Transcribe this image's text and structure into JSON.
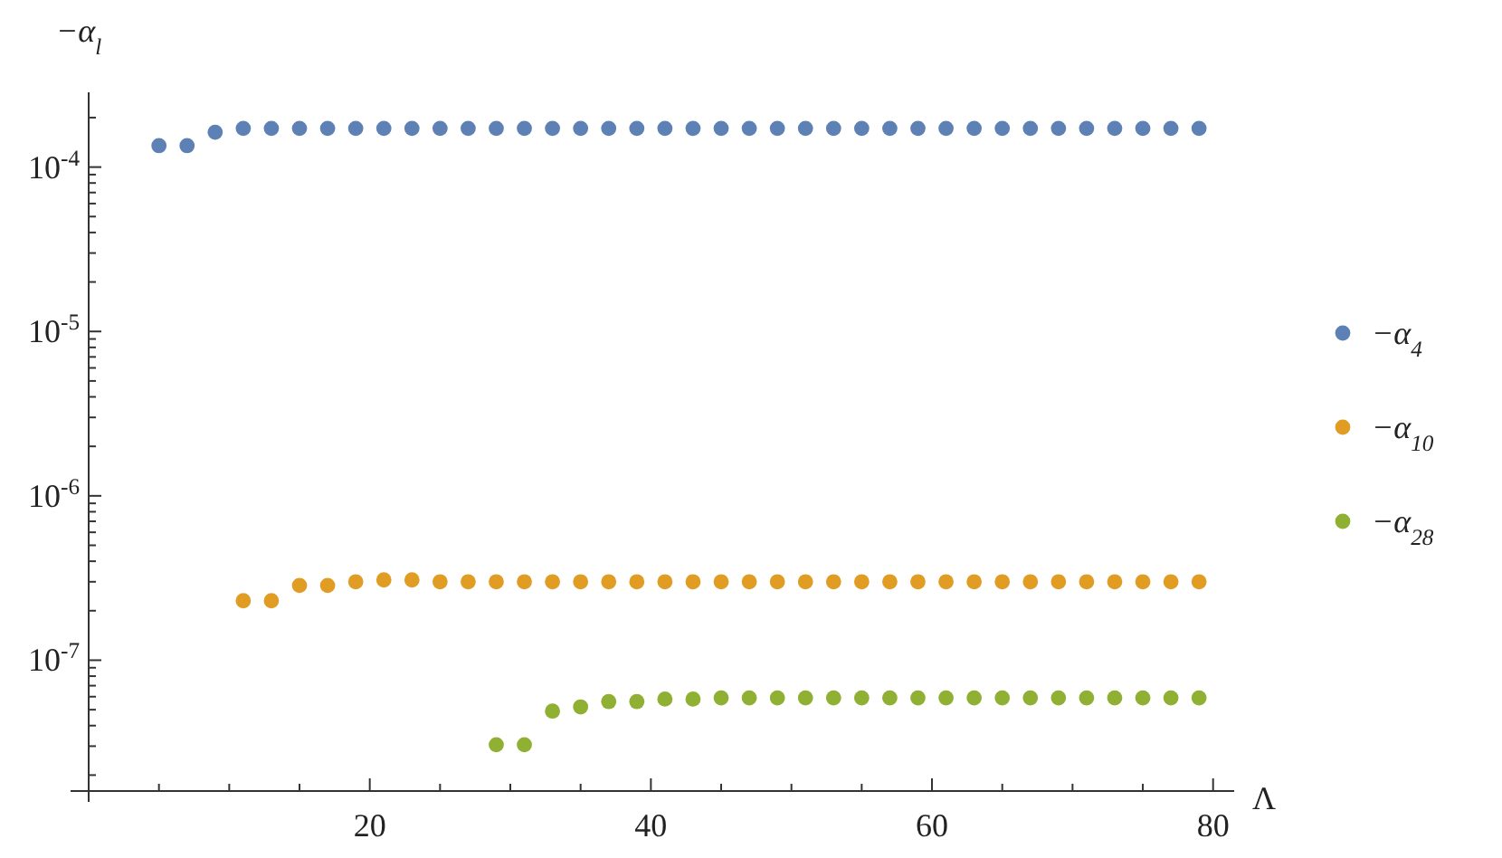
{
  "chart_data": {
    "type": "scatter",
    "xlabel": "Λ",
    "ylabel": "−α$_{l}$",
    "log": "y",
    "marker": "circle",
    "legend": "right",
    "xlim": [
      0,
      81.5
    ],
    "ylim": [
      1.6e-08,
      0.000285
    ],
    "xticks": [
      {
        "value": 5,
        "label": null
      },
      {
        "value": 10,
        "label": null
      },
      {
        "value": 15,
        "label": null
      },
      20,
      {
        "value": 25,
        "label": null
      },
      {
        "value": 30,
        "label": null
      },
      {
        "value": 35,
        "label": null
      },
      40,
      {
        "value": 45,
        "label": null
      },
      {
        "value": 50,
        "label": null
      },
      {
        "value": 55,
        "label": null
      },
      60,
      {
        "value": 65,
        "label": null
      },
      {
        "value": 70,
        "label": null
      },
      {
        "value": 75,
        "label": null
      },
      80
    ],
    "yticks": [
      {
        "value": 2e-08,
        "label": null
      },
      {
        "value": 3e-08,
        "label": null
      },
      {
        "value": 4e-08,
        "label": null
      },
      {
        "value": 5e-08,
        "label": null
      },
      {
        "value": 6e-08,
        "label": null
      },
      {
        "value": 7e-08,
        "label": null
      },
      {
        "value": 8e-08,
        "label": null
      },
      {
        "value": 9e-08,
        "label": null
      },
      {
        "value": 1e-07,
        "label": "10$^{-7}$"
      },
      {
        "value": 2e-07,
        "label": null
      },
      {
        "value": 3e-07,
        "label": null
      },
      {
        "value": 4e-07,
        "label": null
      },
      {
        "value": 5e-07,
        "label": null
      },
      {
        "value": 6e-07,
        "label": null
      },
      {
        "value": 7e-07,
        "label": null
      },
      {
        "value": 8e-07,
        "label": null
      },
      {
        "value": 9e-07,
        "label": null
      },
      {
        "value": 1e-06,
        "label": "10$^{-6}$"
      },
      {
        "value": 2e-06,
        "label": null
      },
      {
        "value": 3e-06,
        "label": null
      },
      {
        "value": 4e-06,
        "label": null
      },
      {
        "value": 5e-06,
        "label": null
      },
      {
        "value": 6e-06,
        "label": null
      },
      {
        "value": 7e-06,
        "label": null
      },
      {
        "value": 8e-06,
        "label": null
      },
      {
        "value": 9e-06,
        "label": null
      },
      {
        "value": 1e-05,
        "label": "10$^{-5}$"
      },
      {
        "value": 2e-05,
        "label": null
      },
      {
        "value": 3e-05,
        "label": null
      },
      {
        "value": 4e-05,
        "label": null
      },
      {
        "value": 5e-05,
        "label": null
      },
      {
        "value": 6e-05,
        "label": null
      },
      {
        "value": 7e-05,
        "label": null
      },
      {
        "value": 8e-05,
        "label": null
      },
      {
        "value": 9e-05,
        "label": null
      },
      {
        "value": 0.0001,
        "label": "10$^{-4}$"
      },
      {
        "value": 0.0002,
        "label": null
      }
    ],
    "series": [
      {
        "name": "−α$_{4}$",
        "color": "#5e81b5",
        "x": [
          5,
          7,
          9,
          11,
          13,
          15,
          17,
          19,
          21,
          23,
          25,
          27,
          29,
          31,
          33,
          35,
          37,
          39,
          41,
          43,
          45,
          47,
          49,
          51,
          53,
          55,
          57,
          59,
          61,
          63,
          65,
          67,
          69,
          71,
          73,
          75,
          77,
          79
        ],
        "values": [
          0.000135,
          0.000135,
          0.000163,
          0.000172,
          0.000172,
          0.000172,
          0.000172,
          0.000172,
          0.000172,
          0.000172,
          0.000172,
          0.000172,
          0.000172,
          0.000172,
          0.000172,
          0.000172,
          0.000172,
          0.000172,
          0.000172,
          0.000172,
          0.000172,
          0.000172,
          0.000172,
          0.000172,
          0.000172,
          0.000172,
          0.000172,
          0.000172,
          0.000172,
          0.000172,
          0.000172,
          0.000172,
          0.000172,
          0.000172,
          0.000172,
          0.000172,
          0.000172,
          0.000172
        ]
      },
      {
        "name": "−α$_{10}$",
        "color": "#e19c24",
        "x": [
          11,
          13,
          15,
          17,
          19,
          21,
          23,
          25,
          27,
          29,
          31,
          33,
          35,
          37,
          39,
          41,
          43,
          45,
          47,
          49,
          51,
          53,
          55,
          57,
          59,
          61,
          63,
          65,
          67,
          69,
          71,
          73,
          75,
          77,
          79
        ],
        "values": [
          2.3e-07,
          2.3e-07,
          2.85e-07,
          2.85e-07,
          3e-07,
          3.08e-07,
          3.08e-07,
          3e-07,
          3e-07,
          3e-07,
          3e-07,
          3e-07,
          3e-07,
          3e-07,
          3e-07,
          3e-07,
          3e-07,
          3e-07,
          3e-07,
          3e-07,
          3e-07,
          3e-07,
          3e-07,
          3e-07,
          3e-07,
          3e-07,
          3e-07,
          3e-07,
          3e-07,
          3e-07,
          3e-07,
          3e-07,
          3e-07,
          3e-07,
          3e-07
        ]
      },
      {
        "name": "−α$_{28}$",
        "color": "#8fb032",
        "x": [
          29,
          31,
          33,
          35,
          37,
          39,
          41,
          43,
          45,
          47,
          49,
          51,
          53,
          55,
          57,
          59,
          61,
          63,
          65,
          67,
          69,
          71,
          73,
          75,
          77,
          79
        ],
        "values": [
          3.06e-08,
          3.06e-08,
          4.9e-08,
          5.2e-08,
          5.6e-08,
          5.6e-08,
          5.8e-08,
          5.8e-08,
          5.9e-08,
          5.9e-08,
          5.9e-08,
          5.9e-08,
          5.9e-08,
          5.9e-08,
          5.9e-08,
          5.9e-08,
          5.9e-08,
          5.9e-08,
          5.9e-08,
          5.9e-08,
          5.9e-08,
          5.9e-08,
          5.9e-08,
          5.9e-08,
          5.9e-08,
          5.9e-08
        ]
      }
    ]
  }
}
